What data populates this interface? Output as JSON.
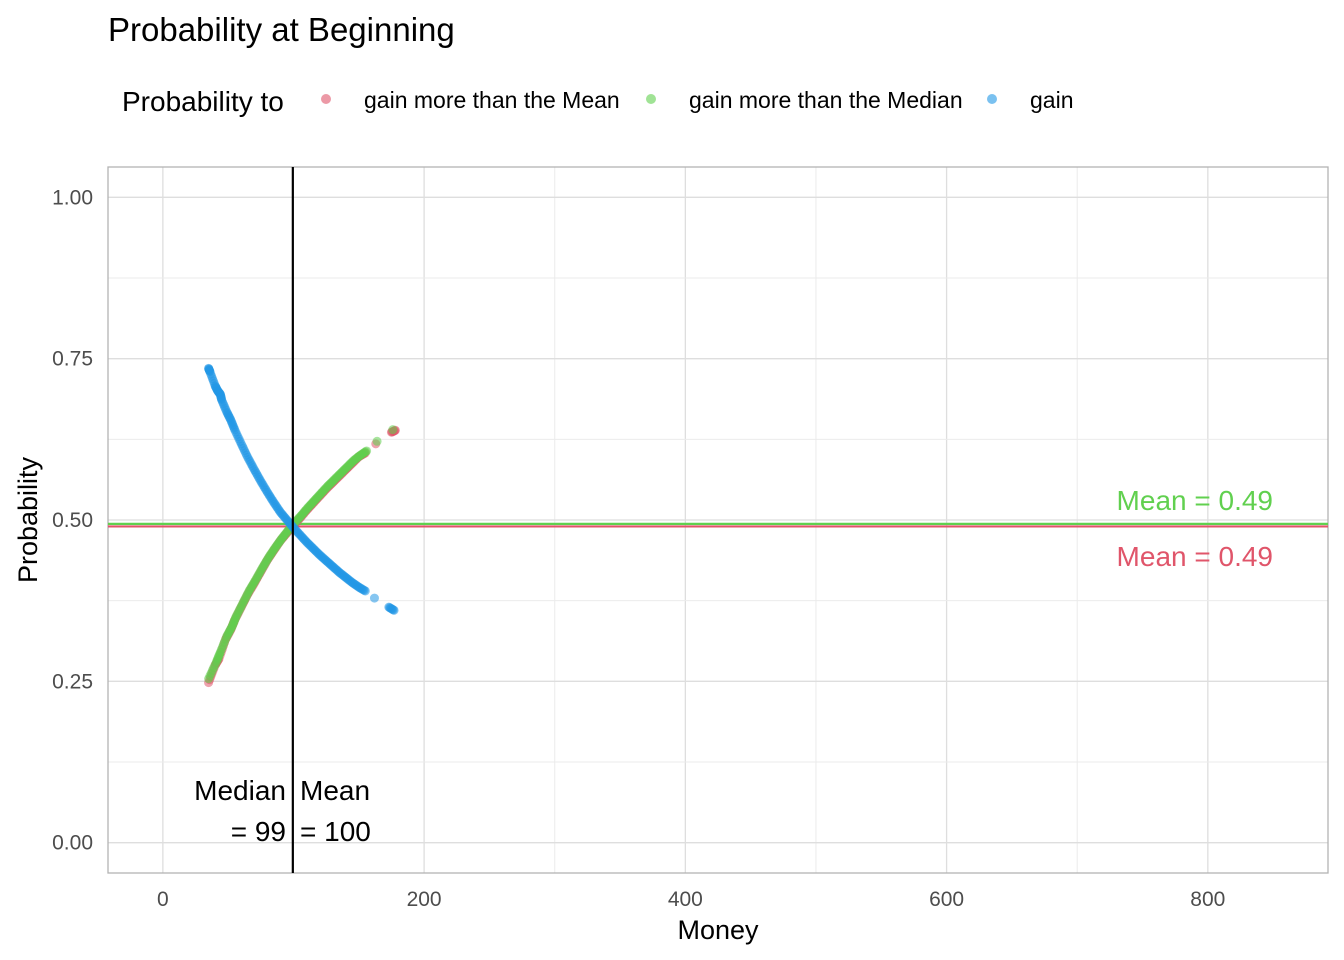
{
  "chart_data": {
    "type": "scatter",
    "title": "Probability at Beginning",
    "xlabel": "Money",
    "ylabel": "Probability",
    "xlim": [
      -42,
      892
    ],
    "ylim": [
      -0.047,
      1.047
    ],
    "x_ticks": [
      0,
      200,
      400,
      600,
      800
    ],
    "x_tick_labels": [
      "0",
      "200",
      "400",
      "600",
      "800"
    ],
    "y_ticks": [
      0,
      0.25,
      0.5,
      0.75,
      1.0
    ],
    "y_tick_labels": [
      "0.00",
      "0.25",
      "0.50",
      "0.75",
      "1.00"
    ],
    "grid": true,
    "legend": {
      "title": "Probability to",
      "position": "top",
      "entries": [
        {
          "label": "gain more than the Mean",
          "color": "#e0556a"
        },
        {
          "label": "gain more than the Median",
          "color": "#61d04f"
        },
        {
          "label": "gain",
          "color": "#2297e6"
        }
      ]
    },
    "series": [
      {
        "name": "gain more than the Mean",
        "color": "#e0556a",
        "points": [
          [
            35,
            0.248
          ],
          [
            40,
            0.275
          ],
          [
            43,
            0.285
          ],
          [
            48,
            0.315
          ],
          [
            52,
            0.33
          ],
          [
            55,
            0.345
          ],
          [
            60,
            0.365
          ],
          [
            65,
            0.385
          ],
          [
            70,
            0.402
          ],
          [
            75,
            0.42
          ],
          [
            80,
            0.438
          ],
          [
            85,
            0.453
          ],
          [
            90,
            0.468
          ],
          [
            95,
            0.48
          ],
          [
            100,
            0.492
          ],
          [
            105,
            0.503
          ],
          [
            110,
            0.515
          ],
          [
            115,
            0.526
          ],
          [
            120,
            0.537
          ],
          [
            125,
            0.548
          ],
          [
            130,
            0.558
          ],
          [
            135,
            0.568
          ],
          [
            140,
            0.578
          ],
          [
            145,
            0.588
          ],
          [
            150,
            0.598
          ],
          [
            155,
            0.604
          ],
          [
            163,
            0.618
          ],
          [
            175,
            0.636
          ],
          [
            178,
            0.639
          ]
        ]
      },
      {
        "name": "gain more than the Median",
        "color": "#61d04f",
        "points": [
          [
            35,
            0.254
          ],
          [
            41,
            0.28
          ],
          [
            44,
            0.295
          ],
          [
            49,
            0.32
          ],
          [
            53,
            0.335
          ],
          [
            56,
            0.35
          ],
          [
            61,
            0.37
          ],
          [
            66,
            0.39
          ],
          [
            71,
            0.407
          ],
          [
            76,
            0.425
          ],
          [
            81,
            0.442
          ],
          [
            86,
            0.457
          ],
          [
            91,
            0.471
          ],
          [
            96,
            0.484
          ],
          [
            101,
            0.496
          ],
          [
            106,
            0.507
          ],
          [
            111,
            0.519
          ],
          [
            116,
            0.53
          ],
          [
            121,
            0.541
          ],
          [
            126,
            0.552
          ],
          [
            131,
            0.562
          ],
          [
            136,
            0.572
          ],
          [
            141,
            0.582
          ],
          [
            146,
            0.592
          ],
          [
            151,
            0.6
          ],
          [
            156,
            0.607
          ],
          [
            164,
            0.622
          ],
          [
            176,
            0.64
          ]
        ]
      },
      {
        "name": "gain",
        "color": "#2297e6",
        "points": [
          [
            35,
            0.735
          ],
          [
            36,
            0.73
          ],
          [
            40,
            0.708
          ],
          [
            42,
            0.7
          ],
          [
            44,
            0.695
          ],
          [
            45,
            0.686
          ],
          [
            49,
            0.667
          ],
          [
            52,
            0.655
          ],
          [
            55,
            0.64
          ],
          [
            60,
            0.618
          ],
          [
            65,
            0.597
          ],
          [
            70,
            0.578
          ],
          [
            75,
            0.56
          ],
          [
            80,
            0.543
          ],
          [
            85,
            0.527
          ],
          [
            90,
            0.512
          ],
          [
            95,
            0.5
          ],
          [
            100,
            0.488
          ],
          [
            105,
            0.477
          ],
          [
            110,
            0.466
          ],
          [
            115,
            0.456
          ],
          [
            120,
            0.446
          ],
          [
            125,
            0.437
          ],
          [
            130,
            0.428
          ],
          [
            135,
            0.419
          ],
          [
            140,
            0.411
          ],
          [
            145,
            0.403
          ],
          [
            150,
            0.396
          ],
          [
            155,
            0.39
          ],
          [
            162,
            0.379
          ],
          [
            173,
            0.365
          ],
          [
            177,
            0.36
          ]
        ]
      }
    ],
    "hlines": [
      {
        "y": 0.494,
        "color": "#61d04f"
      },
      {
        "y": 0.49,
        "color": "#e0556a"
      }
    ],
    "vlines": [
      {
        "x": 99.5,
        "color": "#000000"
      }
    ],
    "annotations": [
      {
        "text": "Mean = 0.49",
        "color": "#61d04f"
      },
      {
        "text": "Mean = 0.49",
        "color": "#e0556a"
      },
      {
        "line1": "Median",
        "line2": "= 99",
        "color": "#000000"
      },
      {
        "line1": "Mean",
        "line2": "= 100",
        "color": "#000000"
      }
    ]
  }
}
